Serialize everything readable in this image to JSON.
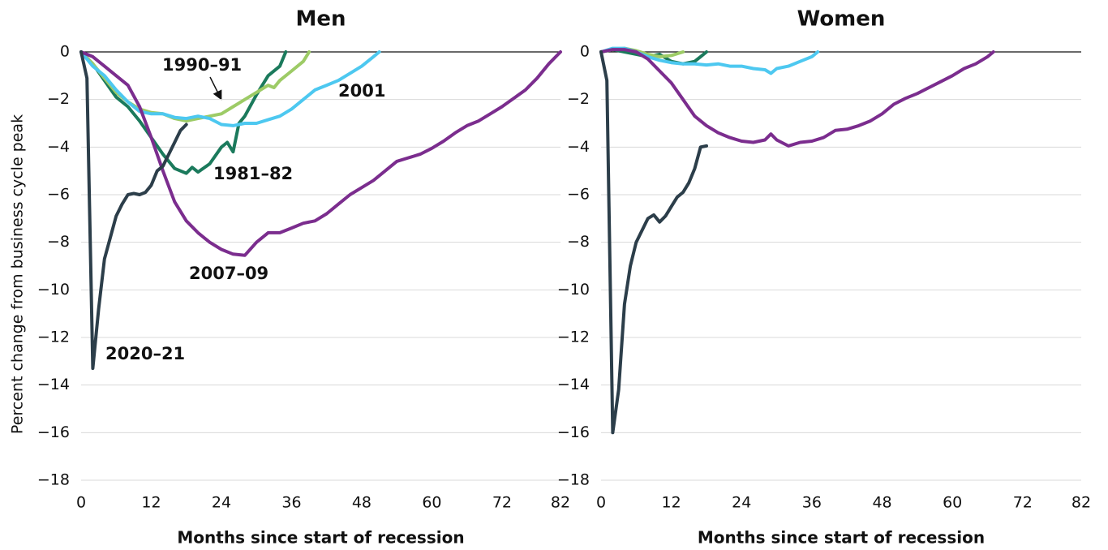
{
  "chart_data": [
    {
      "type": "line",
      "title": "Men",
      "y_label": "Percent change from business cycle peak",
      "x_label": "Months since start of recession",
      "xlim": [
        0,
        82
      ],
      "ylim": [
        -18,
        0
      ],
      "xticks": [
        0,
        12,
        24,
        36,
        48,
        60,
        72,
        82
      ],
      "yticks": [
        0,
        {
          "value": -2,
          "label": "−2"
        },
        {
          "value": -4,
          "label": "−4"
        },
        {
          "value": -6,
          "label": "−6"
        },
        {
          "value": -8,
          "label": "−8"
        },
        {
          "value": -10,
          "label": "−10"
        },
        {
          "value": -12,
          "label": "−12"
        },
        {
          "value": -14,
          "label": "−14"
        },
        {
          "value": -16,
          "label": "−16"
        },
        {
          "value": -18,
          "label": "−18"
        }
      ],
      "grid": true,
      "series": [
        {
          "name": "1981–82",
          "color": "#1b7a5c",
          "x": [
            0,
            2,
            4,
            6,
            8,
            10,
            12,
            14,
            16,
            18,
            19,
            20,
            22,
            24,
            25,
            26,
            27,
            28,
            30,
            32,
            34,
            35
          ],
          "values": [
            0,
            -0.5,
            -1.2,
            -1.9,
            -2.3,
            -2.9,
            -3.6,
            -4.3,
            -4.9,
            -5.1,
            -4.85,
            -5.05,
            -4.7,
            -4.0,
            -3.8,
            -4.2,
            -3.0,
            -2.7,
            -1.8,
            -1.0,
            -0.6,
            0
          ]
        },
        {
          "name": "1990–91",
          "color": "#9dcb66",
          "x": [
            0,
            2,
            4,
            6,
            8,
            10,
            12,
            14,
            16,
            18,
            20,
            22,
            24,
            26,
            28,
            30,
            32,
            33,
            34,
            36,
            38,
            39
          ],
          "values": [
            0,
            -0.5,
            -1.1,
            -1.7,
            -2.1,
            -2.4,
            -2.55,
            -2.6,
            -2.8,
            -2.9,
            -2.8,
            -2.7,
            -2.6,
            -2.3,
            -2.0,
            -1.7,
            -1.4,
            -1.5,
            -1.2,
            -0.8,
            -0.4,
            0
          ]
        },
        {
          "name": "2001",
          "color": "#4dc8f0",
          "x": [
            0,
            2,
            4,
            6,
            8,
            10,
            12,
            14,
            16,
            18,
            20,
            22,
            24,
            26,
            28,
            30,
            32,
            34,
            36,
            38,
            40,
            42,
            44,
            46,
            48,
            50,
            51
          ],
          "values": [
            0,
            -0.6,
            -1.0,
            -1.6,
            -2.1,
            -2.5,
            -2.6,
            -2.6,
            -2.75,
            -2.8,
            -2.7,
            -2.8,
            -3.05,
            -3.1,
            -3.0,
            -3.0,
            -2.85,
            -2.7,
            -2.4,
            -2.0,
            -1.6,
            -1.4,
            -1.2,
            -0.9,
            -0.6,
            -0.2,
            0
          ]
        },
        {
          "name": "2007–09",
          "color": "#7b2d8e",
          "x": [
            0,
            2,
            4,
            6,
            8,
            10,
            12,
            14,
            16,
            18,
            20,
            22,
            24,
            26,
            28,
            30,
            32,
            34,
            36,
            38,
            40,
            42,
            44,
            46,
            48,
            50,
            52,
            54,
            56,
            58,
            60,
            62,
            64,
            66,
            68,
            70,
            72,
            74,
            76,
            78,
            80,
            82
          ],
          "values": [
            0,
            -0.2,
            -0.6,
            -1.0,
            -1.4,
            -2.3,
            -3.6,
            -5.0,
            -6.3,
            -7.1,
            -7.6,
            -8.0,
            -8.3,
            -8.5,
            -8.55,
            -8.0,
            -7.6,
            -7.6,
            -7.4,
            -7.2,
            -7.1,
            -6.8,
            -6.4,
            -6.0,
            -5.7,
            -5.4,
            -5.0,
            -4.6,
            -4.45,
            -4.3,
            -4.05,
            -3.75,
            -3.4,
            -3.1,
            -2.9,
            -2.6,
            -2.3,
            -1.95,
            -1.6,
            -1.1,
            -0.5,
            0
          ]
        },
        {
          "name": "2020–21",
          "color": "#2c3e4a",
          "x": [
            0,
            1,
            2,
            3,
            4,
            5,
            6,
            7,
            8,
            9,
            10,
            11,
            12,
            13,
            14,
            15,
            16,
            17,
            18
          ],
          "values": [
            0,
            -1.1,
            -13.3,
            -10.8,
            -8.7,
            -7.8,
            -6.9,
            -6.4,
            -6.0,
            -5.95,
            -6.0,
            -5.9,
            -5.6,
            -5.0,
            -4.8,
            -4.3,
            -3.8,
            -3.3,
            -3.05
          ]
        }
      ]
    },
    {
      "type": "line",
      "title": "Women",
      "x_label": "Months since start of recession",
      "xlim": [
        0,
        82
      ],
      "ylim": [
        -18,
        0
      ],
      "xticks": [
        0,
        12,
        24,
        36,
        48,
        60,
        72,
        82
      ],
      "yticks": [
        0,
        {
          "value": -2,
          "label": "−2"
        },
        {
          "value": -4,
          "label": "−4"
        },
        {
          "value": -6,
          "label": "−6"
        },
        {
          "value": -8,
          "label": "−8"
        },
        {
          "value": -10,
          "label": "−10"
        },
        {
          "value": -12,
          "label": "−12"
        },
        {
          "value": -14,
          "label": "−14"
        },
        {
          "value": -16,
          "label": "−16"
        },
        {
          "value": -18,
          "label": "−18"
        }
      ],
      "grid": true,
      "series": [
        {
          "color": "#1b7a5c",
          "x": [
            0,
            2,
            4,
            6,
            8,
            10,
            12,
            14,
            16,
            17,
            18
          ],
          "values": [
            0,
            0.1,
            0,
            -0.1,
            -0.2,
            -0.1,
            -0.4,
            -0.5,
            -0.4,
            -0.2,
            0
          ]
        },
        {
          "color": "#9dcb66",
          "x": [
            0,
            2,
            4,
            6,
            8,
            10,
            12,
            14
          ],
          "values": [
            0,
            0.1,
            0.15,
            0.05,
            -0.1,
            -0.2,
            -0.15,
            0
          ]
        },
        {
          "color": "#4dc8f0",
          "x": [
            0,
            2,
            4,
            6,
            8,
            10,
            12,
            14,
            16,
            18,
            20,
            22,
            24,
            26,
            28,
            29,
            30,
            32,
            34,
            36,
            37
          ],
          "values": [
            0,
            0.15,
            0.15,
            0,
            -0.2,
            -0.35,
            -0.45,
            -0.5,
            -0.5,
            -0.55,
            -0.5,
            -0.6,
            -0.6,
            -0.7,
            -0.75,
            -0.9,
            -0.7,
            -0.6,
            -0.4,
            -0.2,
            0
          ]
        },
        {
          "color": "#7b2d8e",
          "x": [
            0,
            2,
            4,
            6,
            8,
            10,
            12,
            14,
            16,
            18,
            20,
            22,
            24,
            26,
            28,
            29,
            30,
            32,
            34,
            36,
            38,
            40,
            42,
            44,
            46,
            48,
            50,
            52,
            54,
            56,
            58,
            60,
            62,
            64,
            66,
            67
          ],
          "values": [
            0,
            0.1,
            0.1,
            0,
            -0.3,
            -0.8,
            -1.3,
            -2.0,
            -2.7,
            -3.1,
            -3.4,
            -3.6,
            -3.75,
            -3.8,
            -3.7,
            -3.45,
            -3.7,
            -3.95,
            -3.8,
            -3.75,
            -3.6,
            -3.3,
            -3.25,
            -3.1,
            -2.9,
            -2.6,
            -2.2,
            -1.95,
            -1.75,
            -1.5,
            -1.25,
            -1.0,
            -0.7,
            -0.5,
            -0.2,
            0
          ]
        },
        {
          "color": "#2c3e4a",
          "x": [
            0,
            1,
            2,
            3,
            4,
            5,
            6,
            8,
            9,
            10,
            11,
            12,
            13,
            14,
            15,
            16,
            17,
            18
          ],
          "values": [
            0,
            -1.2,
            -16.0,
            -14.2,
            -10.6,
            -9.0,
            -8.0,
            -7.0,
            -6.85,
            -7.15,
            -6.9,
            -6.5,
            -6.1,
            -5.9,
            -5.5,
            -4.9,
            -4.0,
            -3.95
          ]
        }
      ]
    }
  ]
}
